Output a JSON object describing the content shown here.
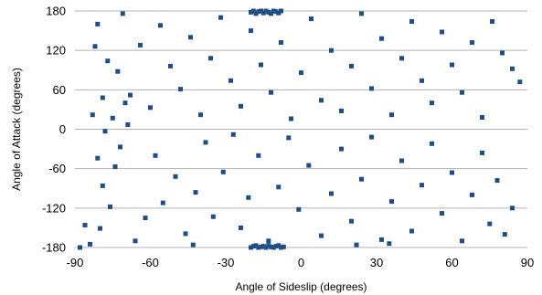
{
  "chart_data": {
    "type": "scatter",
    "title": "",
    "xlabel": "Angle of Sideslip (degrees)",
    "ylabel": "Angle of Attack (degrees)",
    "xlim": [
      -90,
      90
    ],
    "ylim": [
      -180,
      180
    ],
    "x_ticks": [
      "-90",
      "-60",
      "-30",
      "0",
      "30",
      "60",
      "90"
    ],
    "y_ticks": [
      "180",
      "120",
      "60",
      "0",
      "-60",
      "-120",
      "-180"
    ],
    "grid": "horizontal",
    "legend": "none",
    "marker": "square",
    "color": "#1f4e86",
    "series": [
      {
        "points": [
          [
            -88,
            -180
          ],
          [
            -86,
            -146
          ],
          [
            -84,
            -175
          ],
          [
            -81,
            -44
          ],
          [
            -80,
            -151
          ],
          [
            -79,
            -86
          ],
          [
            -78,
            -3
          ],
          [
            -76,
            -118
          ],
          [
            -74,
            -57
          ],
          [
            -72,
            -27
          ],
          [
            -69,
            7
          ],
          [
            -66,
            -170
          ],
          [
            -62,
            -135
          ],
          [
            -55,
            -112
          ],
          [
            -50,
            -72
          ],
          [
            -46,
            -159
          ],
          [
            -42,
            -96
          ],
          [
            -38,
            -20
          ],
          [
            -35,
            -133
          ],
          [
            -31,
            -65
          ],
          [
            -27,
            -8
          ],
          [
            -24,
            -150
          ],
          [
            -21,
            -104
          ],
          [
            -17,
            -40
          ],
          [
            -13,
            -170
          ],
          [
            -9,
            -88
          ],
          [
            -5,
            -13
          ],
          [
            -1,
            -122
          ],
          [
            3,
            -55
          ],
          [
            8,
            -162
          ],
          [
            12,
            -98
          ],
          [
            16,
            -30
          ],
          [
            20,
            -140
          ],
          [
            24,
            -76
          ],
          [
            28,
            -12
          ],
          [
            32,
            -168
          ],
          [
            36,
            -110
          ],
          [
            40,
            -48
          ],
          [
            44,
            -155
          ],
          [
            48,
            -85
          ],
          [
            52,
            -22
          ],
          [
            56,
            -128
          ],
          [
            60,
            -66
          ],
          [
            64,
            -170
          ],
          [
            68,
            -100
          ],
          [
            72,
            -36
          ],
          [
            75,
            -144
          ],
          [
            78,
            -78
          ],
          [
            81,
            -160
          ],
          [
            84,
            -120
          ],
          [
            -83,
            22
          ],
          [
            -82,
            126
          ],
          [
            -81,
            160
          ],
          [
            -79,
            48
          ],
          [
            -77,
            104
          ],
          [
            -75,
            17
          ],
          [
            -73,
            88
          ],
          [
            -71,
            176
          ],
          [
            -68,
            52
          ],
          [
            -64,
            128
          ],
          [
            -60,
            33
          ],
          [
            -56,
            158
          ],
          [
            -52,
            96
          ],
          [
            -48,
            61
          ],
          [
            -44,
            140
          ],
          [
            -40,
            22
          ],
          [
            -36,
            108
          ],
          [
            -32,
            170
          ],
          [
            -28,
            74
          ],
          [
            -24,
            35
          ],
          [
            -20,
            150
          ],
          [
            -16,
            98
          ],
          [
            -12,
            56
          ],
          [
            -8,
            132
          ],
          [
            -4,
            16
          ],
          [
            0,
            86
          ],
          [
            4,
            168
          ],
          [
            8,
            44
          ],
          [
            12,
            120
          ],
          [
            16,
            28
          ],
          [
            20,
            96
          ],
          [
            24,
            176
          ],
          [
            28,
            62
          ],
          [
            32,
            138
          ],
          [
            36,
            22
          ],
          [
            40,
            108
          ],
          [
            44,
            164
          ],
          [
            48,
            74
          ],
          [
            52,
            40
          ],
          [
            56,
            148
          ],
          [
            60,
            98
          ],
          [
            64,
            56
          ],
          [
            68,
            132
          ],
          [
            72,
            18
          ],
          [
            76,
            164
          ],
          [
            80,
            116
          ],
          [
            84,
            92
          ],
          [
            87,
            72
          ],
          [
            -70,
            40
          ],
          [
            -58,
            -40
          ],
          [
            -20,
            178
          ],
          [
            -19,
            180
          ],
          [
            -18,
            176
          ],
          [
            -17,
            179
          ],
          [
            -16,
            180
          ],
          [
            -15,
            177
          ],
          [
            -14,
            180
          ],
          [
            -13,
            178
          ],
          [
            -12,
            176
          ],
          [
            -11,
            180
          ],
          [
            -10,
            179
          ],
          [
            -9,
            177
          ],
          [
            -8,
            180
          ],
          [
            -20,
            -180
          ],
          [
            -19,
            -178
          ],
          [
            -18,
            -177
          ],
          [
            -17,
            -180
          ],
          [
            -16,
            -179
          ],
          [
            -15,
            -178
          ],
          [
            -14,
            -180
          ],
          [
            -13,
            -177
          ],
          [
            -12,
            -179
          ],
          [
            -11,
            -180
          ],
          [
            -10,
            -178
          ],
          [
            -9,
            -177
          ],
          [
            -8,
            -180
          ],
          [
            -7,
            -179
          ],
          [
            -43,
            -176
          ],
          [
            22,
            -176
          ],
          [
            35,
            -174
          ]
        ]
      }
    ]
  }
}
